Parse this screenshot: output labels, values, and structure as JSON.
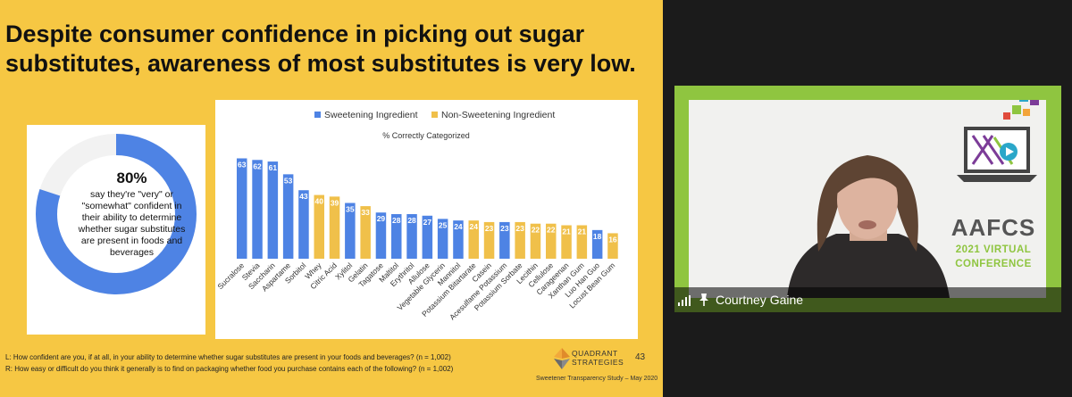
{
  "slide": {
    "headline": "Despite consumer confidence in picking out sugar substitutes, awareness of most substitutes is very low.",
    "donut": {
      "percent_label": "80%",
      "value": 0.8,
      "description": "say they're \"very\" or \"somewhat\" confident in their ability to determine whether sugar substitutes are present in foods and beverages",
      "color": "#4e83e4",
      "track_color": "#f2f2f2"
    },
    "footnote_l": "L: How confident are you, if at all, in your ability to determine whether sugar substitutes are present in your foods and beverages? (n = 1,002)",
    "footnote_r": "R: How easy or difficult do you think it generally is to find on packaging whether food you purchase contains each of the following? (n = 1,002)",
    "logo_line1": "QUADRANT",
    "logo_line2": "STRATEGIES",
    "page_number": "43",
    "study_label": "Sweetener Transparency Study – May 2020"
  },
  "chart_data": {
    "type": "bar",
    "title": "% Correctly Categorized",
    "legend_position": "top",
    "series": [
      {
        "name": "Sweetening Ingredient",
        "color": "#4e83e4"
      },
      {
        "name": "Non-Sweetening Ingredient",
        "color": "#f0c04a"
      }
    ],
    "ylim": [
      0,
      70
    ],
    "bars": [
      {
        "label": "Sucralose",
        "value": 63,
        "series": 0
      },
      {
        "label": "Stevia",
        "value": 62,
        "series": 0
      },
      {
        "label": "Saccharin",
        "value": 61,
        "series": 0
      },
      {
        "label": "Aspartame",
        "value": 53,
        "series": 0
      },
      {
        "label": "Sorbitol",
        "value": 43,
        "series": 0
      },
      {
        "label": "Whey",
        "value": 40,
        "series": 1
      },
      {
        "label": "Citric Acid",
        "value": 39,
        "series": 1
      },
      {
        "label": "Xylitol",
        "value": 35,
        "series": 0
      },
      {
        "label": "Gelatin",
        "value": 33,
        "series": 1
      },
      {
        "label": "Tagatose",
        "value": 29,
        "series": 0
      },
      {
        "label": "Maltitol",
        "value": 28,
        "series": 0
      },
      {
        "label": "Erythritol",
        "value": 28,
        "series": 0
      },
      {
        "label": "Allulose",
        "value": 27,
        "series": 0
      },
      {
        "label": "Vegetable Glycerin",
        "value": 25,
        "series": 0
      },
      {
        "label": "Mannitol",
        "value": 24,
        "series": 0
      },
      {
        "label": "Potassium Bitartarate",
        "value": 24,
        "series": 1
      },
      {
        "label": "Casein",
        "value": 23,
        "series": 1
      },
      {
        "label": "Acesulfame Potassium",
        "value": 23,
        "series": 0
      },
      {
        "label": "Potassium Sorbate",
        "value": 23,
        "series": 1
      },
      {
        "label": "Lecithin",
        "value": 22,
        "series": 1
      },
      {
        "label": "Cellulose",
        "value": 22,
        "series": 1
      },
      {
        "label": "Carageenan",
        "value": 21,
        "series": 1
      },
      {
        "label": "Xanthan Gum",
        "value": 21,
        "series": 1
      },
      {
        "label": "Luo Han Guo",
        "value": 18,
        "series": 0
      },
      {
        "label": "Locust Bean Gum",
        "value": 16,
        "series": 1
      }
    ]
  },
  "video": {
    "participant_name": "Courtney Gaine",
    "brand_name": "AAFCS",
    "brand_sub_line1": "2021 VIRTUAL",
    "brand_sub_line2": "CONFERENCE",
    "icons": [
      "signal-bars-icon",
      "pin-icon"
    ]
  }
}
